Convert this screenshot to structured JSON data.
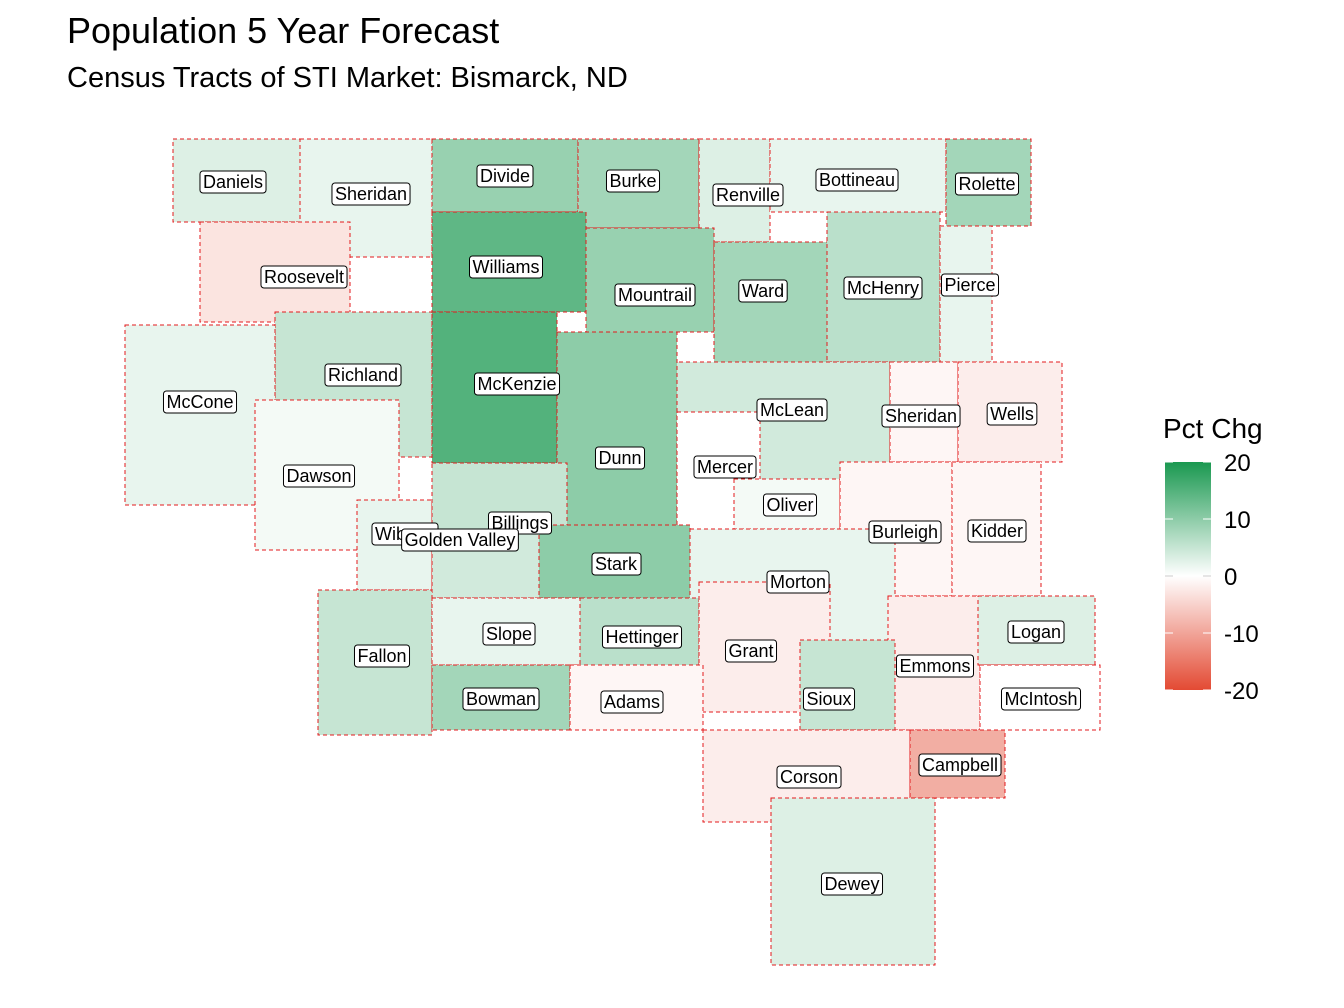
{
  "title": "Population 5 Year Forecast",
  "subtitle": "Census Tracts of STI Market: Bismarck, ND",
  "legend": {
    "title": "Pct Chg",
    "ticks": [
      "20",
      "10",
      "0",
      "-10",
      "-20"
    ],
    "range": [
      -20,
      20
    ],
    "colors": {
      "high": "#1a9850",
      "mid": "#ffffff",
      "low": "#e34a33"
    }
  },
  "counties": [
    {
      "name": "Daniels",
      "pct": 3
    },
    {
      "name": "Sheridan",
      "pct": 2
    },
    {
      "name": "Divide",
      "pct": 9
    },
    {
      "name": "Burke",
      "pct": 8
    },
    {
      "name": "Renville",
      "pct": 3
    },
    {
      "name": "Bottineau",
      "pct": 2
    },
    {
      "name": "Rolette",
      "pct": 8
    },
    {
      "name": "Roosevelt",
      "pct": -3
    },
    {
      "name": "Williams",
      "pct": 14
    },
    {
      "name": "Mountrail",
      "pct": 9
    },
    {
      "name": "Ward",
      "pct": 8
    },
    {
      "name": "McHenry",
      "pct": 6
    },
    {
      "name": "Pierce",
      "pct": 2
    },
    {
      "name": "Richland",
      "pct": 5
    },
    {
      "name": "McCone",
      "pct": 2
    },
    {
      "name": "McKenzie",
      "pct": 15
    },
    {
      "name": "McLean",
      "pct": 4
    },
    {
      "name": "Sheridan",
      "pct": -1
    },
    {
      "name": "Wells",
      "pct": -2
    },
    {
      "name": "Dawson",
      "pct": 1
    },
    {
      "name": "Dunn",
      "pct": 10
    },
    {
      "name": "Mercer",
      "pct": 0
    },
    {
      "name": "Oliver",
      "pct": 1
    },
    {
      "name": "Wibaux",
      "pct": 2
    },
    {
      "name": "Billings",
      "pct": 5
    },
    {
      "name": "Golden Valley",
      "pct": 4
    },
    {
      "name": "Burleigh",
      "pct": -1
    },
    {
      "name": "Kidder",
      "pct": -1
    },
    {
      "name": "Stark",
      "pct": 10
    },
    {
      "name": "Morton",
      "pct": 2
    },
    {
      "name": "Fallon",
      "pct": 5
    },
    {
      "name": "Slope",
      "pct": 2
    },
    {
      "name": "Hettinger",
      "pct": 6
    },
    {
      "name": "Grant",
      "pct": -2
    },
    {
      "name": "Emmons",
      "pct": -2
    },
    {
      "name": "Logan",
      "pct": 3
    },
    {
      "name": "Bowman",
      "pct": 8
    },
    {
      "name": "Adams",
      "pct": -1
    },
    {
      "name": "Sioux",
      "pct": 5
    },
    {
      "name": "McIntosh",
      "pct": 0
    },
    {
      "name": "Corson",
      "pct": -2
    },
    {
      "name": "Campbell",
      "pct": -9
    },
    {
      "name": "Dewey",
      "pct": 3
    }
  ]
}
